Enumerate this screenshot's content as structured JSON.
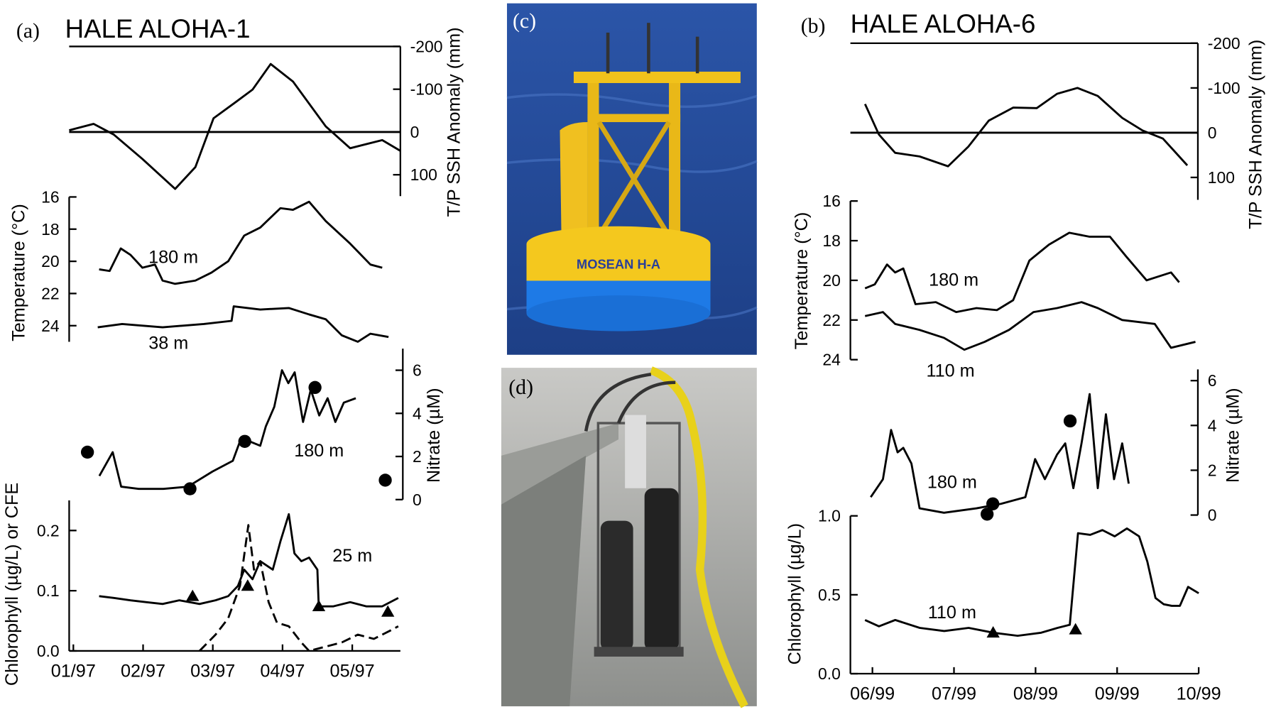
{
  "panels": [
    {
      "label": "(a)",
      "title": "HALE ALOHA-1"
    },
    {
      "label": "(b)",
      "title": "HALE ALOHA-6"
    }
  ],
  "photos": [
    {
      "label": "(c)",
      "text": "MOSEAN H-A"
    },
    {
      "label": "(d)"
    }
  ],
  "chart_data": [
    {
      "type": "line",
      "ylabel": "T/P SSH Anomaly (mm)",
      "xlim": [
        0.94,
        5.69
      ],
      "ylim": [
        150,
        -200
      ],
      "yticks": [
        -200,
        -100,
        0,
        100
      ],
      "zero_line": true,
      "top_line": true,
      "series": [
        {
          "color": "#000000",
          "style": "solid",
          "x": [
            0.94,
            1.29,
            1.58,
            1.99,
            2.46,
            2.75,
            3.01,
            3.33,
            3.57,
            3.83,
            4.15,
            4.62,
            4.97,
            5.43,
            5.69
          ],
          "values": [
            -4,
            -19,
            6,
            63,
            133,
            82,
            -32,
            -70,
            -99,
            -159,
            -118,
            -13,
            38,
            19,
            44
          ]
        }
      ]
    },
    {
      "type": "line",
      "ylabel": "Temperature (°C)",
      "xlim": [
        0.94,
        5.69
      ],
      "ylim": [
        25,
        16
      ],
      "yticks": [
        16,
        18,
        20,
        22,
        24
      ],
      "series": [
        {
          "name": "180 m",
          "color": "#000000",
          "style": "solid",
          "x": [
            1.37,
            1.52,
            1.68,
            1.82,
            1.99,
            2.17,
            2.28,
            2.46,
            2.75,
            2.98,
            3.22,
            3.45,
            3.68,
            3.97,
            4.15,
            4.38,
            4.62,
            4.97,
            5.26,
            5.43
          ],
          "values": [
            20.5,
            20.6,
            19.2,
            19.6,
            20.4,
            20.2,
            21.2,
            21.4,
            21.2,
            20.7,
            20.0,
            18.4,
            17.9,
            16.7,
            16.8,
            16.3,
            17.5,
            18.9,
            20.2,
            20.4
          ]
        },
        {
          "name": "38 m",
          "color": "#000000",
          "style": "solid",
          "x": [
            1.35,
            1.7,
            2.28,
            2.87,
            3.27,
            3.3,
            3.68,
            4.09,
            4.38,
            4.62,
            4.85,
            5.08,
            5.26,
            5.52
          ],
          "values": [
            24.1,
            23.9,
            24.1,
            23.9,
            23.7,
            22.8,
            23.0,
            22.9,
            23.3,
            23.6,
            24.6,
            25.0,
            24.5,
            24.7
          ]
        }
      ]
    },
    {
      "type": "line",
      "ylabel": "Nitrate (µM)",
      "xlim": [
        0.94,
        5.69
      ],
      "ylim": [
        0,
        7
      ],
      "yticks": [
        0,
        2,
        4,
        6
      ],
      "series": [
        {
          "name": "180 m",
          "color": "#000000",
          "style": "solid",
          "x": [
            1.37,
            1.56,
            1.68,
            1.93,
            2.28,
            2.63,
            2.98,
            3.27,
            3.36,
            3.51,
            3.66,
            3.74,
            3.86,
            3.97,
            4.06,
            4.15,
            4.27,
            4.38,
            4.5,
            4.62,
            4.73,
            4.85,
            5.02
          ],
          "values": [
            1.1,
            2.2,
            0.6,
            0.5,
            0.5,
            0.6,
            1.3,
            1.8,
            2.6,
            2.7,
            2.5,
            3.4,
            4.3,
            6.0,
            5.4,
            5.9,
            3.6,
            5.1,
            3.9,
            4.7,
            3.6,
            4.5,
            4.7
          ]
        },
        {
          "color": "#000000",
          "style": "markers",
          "marker": "circle",
          "x": [
            1.2,
            2.66,
            3.44,
            4.44,
            5.44
          ],
          "values": [
            2.2,
            0.5,
            2.7,
            5.2,
            0.9
          ]
        }
      ]
    },
    {
      "type": "line",
      "ylabel": "Chlorophyll (µg/L) or CFE",
      "xlim": [
        0.94,
        5.69
      ],
      "ylim": [
        0,
        0.25
      ],
      "yticks": [
        {
          "value": 0,
          "label": "0.0"
        },
        0.1,
        0.2
      ],
      "xticks": [
        {
          "value": 1,
          "label": "01/97"
        },
        {
          "value": 2,
          "label": "02/97"
        },
        {
          "value": 3,
          "label": "03/97"
        },
        {
          "value": 4,
          "label": "04/97"
        },
        {
          "value": 5,
          "label": "05/97"
        }
      ],
      "series": [
        {
          "name": "25 m",
          "color": "#000000",
          "style": "solid",
          "x": [
            1.37,
            1.58,
            1.82,
            2.05,
            2.28,
            2.52,
            2.81,
            3.04,
            3.22,
            3.36,
            3.45,
            3.57,
            3.68,
            3.86,
            3.97,
            4.09,
            4.17,
            4.27,
            4.38,
            4.5,
            4.52,
            4.73,
            4.97,
            5.2,
            5.43,
            5.66
          ],
          "values": [
            0.091,
            0.088,
            0.084,
            0.081,
            0.078,
            0.084,
            0.078,
            0.084,
            0.091,
            0.108,
            0.135,
            0.119,
            0.149,
            0.135,
            0.182,
            0.227,
            0.162,
            0.149,
            0.155,
            0.135,
            0.074,
            0.074,
            0.081,
            0.074,
            0.074,
            0.088
          ]
        },
        {
          "color": "#000000",
          "style": "dashed",
          "x": [
            2.81,
            3.04,
            3.22,
            3.39,
            3.51,
            3.59,
            3.68,
            3.8,
            3.92,
            4.09,
            4.27,
            4.38,
            4.85,
            5.08,
            5.31,
            5.55,
            5.66
          ],
          "values": [
            0,
            0.027,
            0.054,
            0.108,
            0.209,
            0.135,
            0.149,
            0.081,
            0.047,
            0.041,
            0.014,
            0,
            0.014,
            0.027,
            0.02,
            0.034,
            0.041
          ]
        },
        {
          "color": "#000000",
          "style": "markers",
          "marker": "triangle",
          "x": [
            2.71,
            3.5,
            4.52,
            5.51
          ],
          "values": [
            0.091,
            0.108,
            0.074,
            0.065
          ]
        }
      ]
    },
    {
      "type": "line",
      "ylabel": "T/P SSH Anomaly (mm)",
      "xlim": [
        5.73,
        10
      ],
      "ylim": [
        150,
        -200
      ],
      "yticks": [
        -200,
        -100,
        0,
        100
      ],
      "zero_line": true,
      "top_line": true,
      "series": [
        {
          "color": "#000000",
          "style": "solid",
          "x": [
            5.91,
            6.08,
            6.28,
            6.58,
            6.93,
            7.18,
            7.43,
            7.73,
            8.02,
            8.27,
            8.52,
            8.77,
            9.07,
            9.32,
            9.57,
            9.87
          ],
          "values": [
            -64,
            4,
            45,
            53,
            75,
            31,
            -27,
            -56,
            -55,
            -87,
            -100,
            -82,
            -33,
            -5,
            13,
            73
          ]
        }
      ]
    },
    {
      "type": "line",
      "ylabel": "Temperature (°C)",
      "xlim": [
        5.73,
        10
      ],
      "ylim": [
        24,
        16
      ],
      "yticks": [
        16,
        18,
        20,
        22,
        24
      ],
      "series": [
        {
          "name": "180 m",
          "color": "#000000",
          "style": "solid",
          "x": [
            5.91,
            6.03,
            6.18,
            6.28,
            6.38,
            6.53,
            6.78,
            7.03,
            7.28,
            7.53,
            7.73,
            7.93,
            8.17,
            8.42,
            8.67,
            8.92,
            9.12,
            9.37,
            9.67,
            9.77
          ],
          "values": [
            20.4,
            20.2,
            19.2,
            19.6,
            19.4,
            21.2,
            21.1,
            21.6,
            21.4,
            21.5,
            21.0,
            19.0,
            18.2,
            17.6,
            17.8,
            17.8,
            18.8,
            20.0,
            19.6,
            20.1
          ]
        },
        {
          "name": "110 m",
          "color": "#000000",
          "style": "solid",
          "x": [
            5.91,
            6.13,
            6.28,
            6.58,
            6.88,
            7.13,
            7.38,
            7.68,
            7.98,
            8.27,
            8.57,
            8.77,
            9.07,
            9.47,
            9.67,
            9.97
          ],
          "values": [
            21.8,
            21.6,
            22.2,
            22.5,
            22.9,
            23.5,
            23.1,
            22.5,
            21.6,
            21.4,
            21.1,
            21.4,
            22.0,
            22.2,
            23.4,
            23.1
          ]
        }
      ]
    },
    {
      "type": "line",
      "ylabel": "Nitrate (µM)",
      "xlim": [
        5.73,
        10
      ],
      "ylim": [
        0,
        6.5
      ],
      "yticks": [
        0,
        2,
        4,
        6
      ],
      "series": [
        {
          "name": "180 m",
          "color": "#000000",
          "style": "solid",
          "x": [
            5.98,
            6.13,
            6.23,
            6.31,
            6.38,
            6.48,
            6.58,
            6.88,
            7.28,
            7.58,
            7.88,
            8.0,
            8.12,
            8.27,
            8.37,
            8.47,
            8.57,
            8.67,
            8.77,
            8.87,
            8.97,
            9.07,
            9.15
          ],
          "values": [
            0.8,
            1.6,
            3.8,
            2.8,
            3.0,
            2.3,
            0.3,
            0.1,
            0.3,
            0.5,
            0.8,
            2.5,
            1.6,
            2.7,
            3.2,
            1.2,
            3.2,
            5.4,
            1.2,
            4.5,
            1.6,
            3.2,
            1.4
          ]
        },
        {
          "color": "#000000",
          "style": "markers",
          "marker": "circle",
          "x": [
            7.48,
            7.41,
            8.43
          ],
          "values": [
            0.5,
            0.04,
            4.2
          ]
        }
      ]
    },
    {
      "type": "line",
      "ylabel": "Chlorophyll (µg/L)",
      "xlim": [
        5.73,
        10
      ],
      "ylim": [
        0,
        1
      ],
      "yticks": [
        {
          "value": 0,
          "label": "0.0"
        },
        0.5,
        {
          "value": 1,
          "label": "1.0"
        }
      ],
      "xticks": [
        {
          "value": 6,
          "label": "06/99"
        },
        {
          "value": 7,
          "label": "07/99"
        },
        {
          "value": 8,
          "label": "08/99"
        },
        {
          "value": 9,
          "label": "09/99"
        },
        {
          "value": 10,
          "label": "10/99"
        }
      ],
      "series": [
        {
          "name": "110 m",
          "color": "#000000",
          "style": "solid",
          "x": [
            5.91,
            6.08,
            6.28,
            6.58,
            6.88,
            7.18,
            7.48,
            7.78,
            8.07,
            8.27,
            8.42,
            8.52,
            8.67,
            8.82,
            8.97,
            9.12,
            9.27,
            9.37,
            9.47,
            9.57,
            9.67,
            9.77,
            9.87,
            10.0
          ],
          "values": [
            0.34,
            0.3,
            0.34,
            0.29,
            0.27,
            0.29,
            0.26,
            0.24,
            0.26,
            0.29,
            0.31,
            0.89,
            0.88,
            0.91,
            0.87,
            0.92,
            0.87,
            0.71,
            0.48,
            0.44,
            0.43,
            0.43,
            0.55,
            0.51
          ]
        },
        {
          "color": "#000000",
          "style": "markers",
          "marker": "triangle",
          "x": [
            7.48,
            8.49
          ],
          "values": [
            0.26,
            0.28
          ]
        }
      ]
    }
  ]
}
